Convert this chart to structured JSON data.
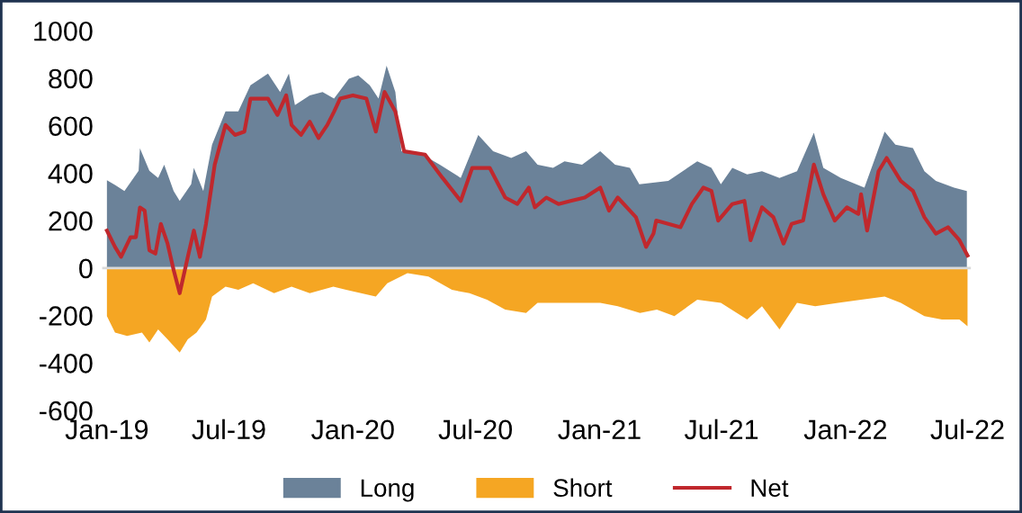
{
  "chart_data": {
    "type": "area",
    "series": [
      {
        "name": "Long",
        "color": "#6b8299",
        "x": [
          "2019-01-01",
          "2019-01-13",
          "2019-01-27",
          "2019-02-17",
          "2019-02-19",
          "2019-03-05",
          "2019-03-18",
          "2019-03-27",
          "2019-04-10",
          "2019-04-19",
          "2019-05-06",
          "2019-05-10",
          "2019-05-24",
          "2019-06-06",
          "2019-06-26",
          "2019-07-15",
          "2019-08-02",
          "2019-08-28",
          "2019-09-15",
          "2019-09-28",
          "2019-10-07",
          "2019-10-29",
          "2019-11-17",
          "2019-12-04",
          "2019-12-26",
          "2020-01-09",
          "2020-01-26",
          "2020-02-08",
          "2020-02-20",
          "2020-03-04",
          "2020-03-13",
          "2020-04-13",
          "2020-05-09",
          "2020-06-09",
          "2020-07-05",
          "2020-07-27",
          "2020-08-23",
          "2020-09-14",
          "2020-10-01",
          "2020-10-24",
          "2020-11-10",
          "2020-12-06",
          "2021-01-02",
          "2021-01-24",
          "2021-02-15",
          "2021-03-01",
          "2021-04-13",
          "2021-05-26",
          "2021-06-16",
          "2021-06-30",
          "2021-07-17",
          "2021-08-08",
          "2021-08-30",
          "2021-09-25",
          "2021-10-21",
          "2021-11-15",
          "2021-11-29",
          "2021-12-25",
          "2022-01-29",
          "2022-02-28",
          "2022-03-16",
          "2022-04-11",
          "2022-04-28",
          "2022-05-15",
          "2022-06-11",
          "2022-06-30"
        ],
        "values": [
          370,
          350,
          325,
          410,
          505,
          410,
          380,
          436,
          325,
          283,
          353,
          422,
          325,
          520,
          660,
          660,
          770,
          820,
          742,
          820,
          687,
          728,
          742,
          714,
          798,
          812,
          770,
          714,
          853,
          742,
          492,
          478,
          436,
          380,
          561,
          492,
          464,
          492,
          436,
          422,
          450,
          436,
          492,
          436,
          422,
          353,
          367,
          450,
          422,
          353,
          422,
          395,
          408,
          380,
          408,
          570,
          422,
          380,
          339,
          575,
          520,
          506,
          408,
          367,
          339,
          325
        ]
      },
      {
        "name": "Short",
        "color": "#f5a623",
        "x": [
          "2019-01-01",
          "2019-01-13",
          "2019-01-31",
          "2019-02-22",
          "2019-03-05",
          "2019-03-18",
          "2019-04-01",
          "2019-04-19",
          "2019-05-01",
          "2019-05-14",
          "2019-05-28",
          "2019-06-06",
          "2019-06-26",
          "2019-07-15",
          "2019-08-06",
          "2019-09-06",
          "2019-10-02",
          "2019-10-29",
          "2019-12-03",
          "2019-12-22",
          "2020-02-04",
          "2020-02-21",
          "2020-03-22",
          "2020-04-22",
          "2020-05-27",
          "2020-06-22",
          "2020-07-18",
          "2020-08-14",
          "2020-09-14",
          "2020-10-01",
          "2020-11-01",
          "2020-12-06",
          "2021-01-02",
          "2021-01-28",
          "2021-03-02",
          "2021-03-27",
          "2021-04-22",
          "2021-05-26",
          "2021-06-30",
          "2021-08-08",
          "2021-08-30",
          "2021-09-25",
          "2021-10-21",
          "2021-11-17",
          "2021-12-21",
          "2022-01-24",
          "2022-02-28",
          "2022-03-24",
          "2022-04-28",
          "2022-05-24",
          "2022-06-19",
          "2022-07-01"
        ],
        "values": [
          -203,
          -272,
          -286,
          -272,
          -314,
          -259,
          -300,
          -356,
          -300,
          -272,
          -217,
          -120,
          -78,
          -92,
          -64,
          -106,
          -78,
          -106,
          -78,
          -92,
          -120,
          -64,
          -22,
          -36,
          -92,
          -106,
          -133,
          -175,
          -189,
          -147,
          -147,
          -147,
          -147,
          -161,
          -189,
          -175,
          -203,
          -133,
          -147,
          -217,
          -161,
          -259,
          -147,
          -161,
          -147,
          -133,
          -120,
          -147,
          -203,
          -217,
          -217,
          -245
        ]
      },
      {
        "name": "Net",
        "type": "line",
        "color": "#c0282d",
        "x": [
          "2019-01-01",
          "2019-01-13",
          "2019-01-22",
          "2019-02-05",
          "2019-02-13",
          "2019-02-19",
          "2019-02-26",
          "2019-03-05",
          "2019-03-14",
          "2019-03-22",
          "2019-04-01",
          "2019-04-10",
          "2019-04-19",
          "2019-05-01",
          "2019-05-10",
          "2019-05-19",
          "2019-05-28",
          "2019-06-10",
          "2019-06-26",
          "2019-07-10",
          "2019-07-24",
          "2019-08-02",
          "2019-08-28",
          "2019-09-11",
          "2019-09-24",
          "2019-10-02",
          "2019-10-16",
          "2019-10-29",
          "2019-11-11",
          "2019-11-24",
          "2019-12-04",
          "2019-12-13",
          "2020-01-01",
          "2020-01-21",
          "2020-02-04",
          "2020-02-17",
          "2020-03-04",
          "2020-03-17",
          "2020-04-17",
          "2020-05-13",
          "2020-06-09",
          "2020-06-26",
          "2020-07-22",
          "2020-08-14",
          "2020-09-01",
          "2020-09-18",
          "2020-09-27",
          "2020-10-14",
          "2020-11-01",
          "2020-11-19",
          "2020-12-10",
          "2021-01-02",
          "2021-01-15",
          "2021-01-28",
          "2021-02-24",
          "2021-03-11",
          "2021-03-22",
          "2021-03-26",
          "2021-05-01",
          "2021-05-18",
          "2021-06-04",
          "2021-06-16",
          "2021-06-26",
          "2021-07-17",
          "2021-08-04",
          "2021-08-13",
          "2021-08-30",
          "2021-09-16",
          "2021-10-01",
          "2021-10-13",
          "2021-10-30",
          "2021-11-15",
          "2021-11-29",
          "2021-12-16",
          "2022-01-03",
          "2022-01-20",
          "2022-01-24",
          "2022-02-02",
          "2022-02-19",
          "2022-03-03",
          "2022-03-24",
          "2022-04-11",
          "2022-04-28",
          "2022-05-15",
          "2022-06-02",
          "2022-06-19",
          "2022-07-01"
        ],
        "values": [
          158,
          89,
          47,
          130,
          130,
          255,
          242,
          75,
          61,
          186,
          103,
          -8,
          -106,
          47,
          158,
          47,
          186,
          436,
          603,
          561,
          575,
          714,
          714,
          645,
          728,
          603,
          561,
          617,
          548,
          603,
          659,
          714,
          728,
          714,
          575,
          742,
          659,
          492,
          478,
          380,
          283,
          422,
          422,
          297,
          270,
          339,
          256,
          297,
          270,
          283,
          297,
          339,
          242,
          297,
          214,
          89,
          145,
          200,
          172,
          270,
          339,
          325,
          200,
          270,
          283,
          117,
          256,
          214,
          103,
          186,
          200,
          436,
          311,
          200,
          256,
          228,
          311,
          158,
          408,
          464,
          367,
          325,
          214,
          145,
          172,
          117,
          53
        ]
      }
    ],
    "xlim": [
      "2018-12-25",
      "2022-07-06"
    ],
    "xticks": [
      {
        "value": "2019-01-01",
        "label": "Jan-19"
      },
      {
        "value": "2019-07-01",
        "label": "Jul-19"
      },
      {
        "value": "2020-01-01",
        "label": "Jan-20"
      },
      {
        "value": "2020-07-01",
        "label": "Jul-20"
      },
      {
        "value": "2021-01-01",
        "label": "Jan-21"
      },
      {
        "value": "2021-07-01",
        "label": "Jul-21"
      },
      {
        "value": "2022-01-01",
        "label": "Jan-22"
      },
      {
        "value": "2022-07-01",
        "label": "Jul-22"
      }
    ],
    "ylim": [
      -600,
      1000
    ],
    "yticks": [
      -600,
      -400,
      -200,
      0,
      200,
      400,
      600,
      800,
      1000
    ],
    "ref_lines": [
      {
        "axis": "y",
        "value": 0,
        "color": "#d9d9d9"
      }
    ],
    "grid": false,
    "legend": "bottom"
  }
}
